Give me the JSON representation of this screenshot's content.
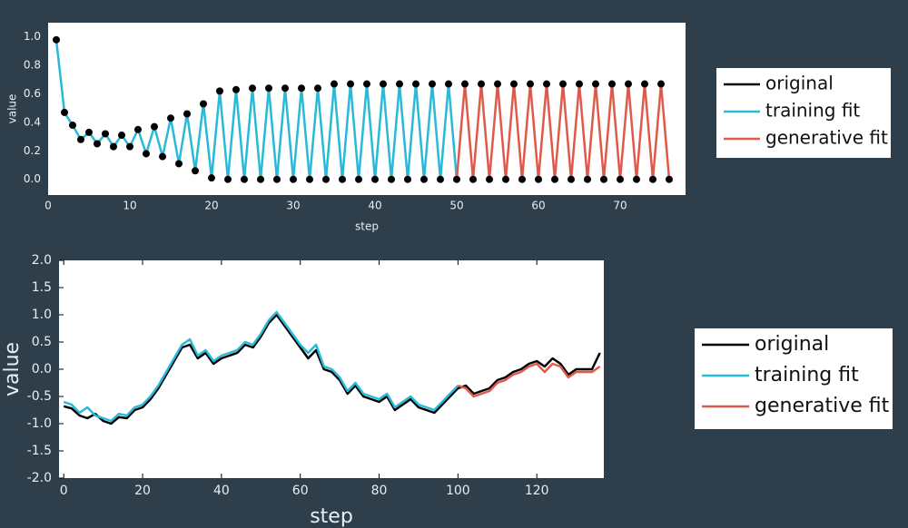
{
  "chart_data": [
    {
      "type": "line",
      "xlabel": "step",
      "ylabel": "value",
      "x": [
        1,
        2,
        3,
        4,
        5,
        6,
        7,
        8,
        9,
        10,
        11,
        12,
        13,
        14,
        15,
        16,
        17,
        18,
        19,
        20,
        21,
        22,
        23,
        24,
        25,
        26,
        27,
        28,
        29,
        30,
        31,
        32,
        33,
        34,
        35,
        36,
        37,
        38,
        39,
        40,
        41,
        42,
        43,
        44,
        45,
        46,
        47,
        48,
        49,
        50,
        51,
        52,
        53,
        54,
        55,
        56,
        57,
        58,
        59,
        60,
        61,
        62,
        63,
        64,
        65,
        66,
        67,
        68,
        69,
        70,
        71,
        72,
        73,
        74,
        75,
        76
      ],
      "series": [
        {
          "name": "original",
          "color": "#000000",
          "mode": "markers",
          "values": [
            0.98,
            0.47,
            0.38,
            0.28,
            0.33,
            0.25,
            0.32,
            0.23,
            0.31,
            0.23,
            0.35,
            0.18,
            0.37,
            0.16,
            0.43,
            0.11,
            0.46,
            0.06,
            0.53,
            0.01,
            0.62,
            0,
            0.63,
            0,
            0.64,
            0,
            0.64,
            0,
            0.64,
            0,
            0.64,
            0,
            0.64,
            0,
            0.67,
            0,
            0.67,
            0,
            0.67,
            0,
            0.67,
            0,
            0.67,
            0,
            0.67,
            0,
            0.67,
            0,
            0.67,
            0,
            0.67,
            0,
            0.67,
            0,
            0.67,
            0,
            0.67,
            0,
            0.67,
            0,
            0.67,
            0,
            0.67,
            0,
            0.67,
            0,
            0.67,
            0,
            0.67,
            0,
            0.67,
            0,
            0.67,
            0,
            0.67,
            0
          ]
        },
        {
          "name": "training fit",
          "color": "#29b9d9",
          "mode": "line",
          "values": [
            0.98,
            0.47,
            0.38,
            0.28,
            0.33,
            0.25,
            0.32,
            0.23,
            0.31,
            0.23,
            0.35,
            0.18,
            0.37,
            0.16,
            0.43,
            0.11,
            0.46,
            0.06,
            0.53,
            0.01,
            0.62,
            0,
            0.63,
            0,
            0.64,
            0,
            0.64,
            0,
            0.64,
            0,
            0.64,
            0,
            0.64,
            0,
            0.67,
            0,
            0.67,
            0,
            0.67,
            0,
            0.67,
            0,
            0.67,
            0,
            0.67,
            0,
            0.67,
            0,
            0.67,
            0,
            null,
            null,
            null,
            null,
            null,
            null,
            null,
            null,
            null,
            null,
            null,
            null,
            null,
            null,
            null,
            null,
            null,
            null,
            null,
            null,
            null,
            null,
            null,
            null,
            null,
            null
          ]
        },
        {
          "name": "generative fit",
          "color": "#e05a4b",
          "mode": "line",
          "values": [
            null,
            null,
            null,
            null,
            null,
            null,
            null,
            null,
            null,
            null,
            null,
            null,
            null,
            null,
            null,
            null,
            null,
            null,
            null,
            null,
            null,
            null,
            null,
            null,
            null,
            null,
            null,
            null,
            null,
            null,
            null,
            null,
            null,
            null,
            null,
            null,
            null,
            null,
            null,
            null,
            null,
            null,
            null,
            null,
            null,
            null,
            null,
            null,
            null,
            0,
            0.67,
            0,
            0.67,
            0,
            0.67,
            0,
            0.67,
            0,
            0.67,
            0,
            0.67,
            0,
            0.67,
            0,
            0.67,
            0,
            0.67,
            0,
            0.67,
            0,
            0.67,
            0,
            0.67,
            0,
            0.67,
            0
          ]
        }
      ],
      "xlim": [
        0,
        78
      ],
      "ylim": [
        -0.11,
        1.1
      ],
      "xticks": [
        0,
        10,
        20,
        30,
        40,
        50,
        60,
        70
      ],
      "yticks": [
        {
          "value": 0,
          "label": "0.0"
        },
        0.2,
        0.4,
        0.6,
        0.8,
        {
          "value": 1,
          "label": "1.0"
        }
      ]
    },
    {
      "type": "line",
      "xlabel": "step",
      "ylabel": "value",
      "x": [
        0,
        2,
        4,
        6,
        8,
        10,
        12,
        14,
        16,
        18,
        20,
        22,
        24,
        26,
        28,
        30,
        32,
        34,
        36,
        38,
        40,
        42,
        44,
        46,
        48,
        50,
        52,
        54,
        56,
        58,
        60,
        62,
        64,
        66,
        68,
        70,
        72,
        74,
        76,
        78,
        80,
        82,
        84,
        86,
        88,
        90,
        92,
        94,
        96,
        98,
        100,
        102,
        104,
        106,
        108,
        110,
        112,
        114,
        116,
        118,
        120,
        122,
        124,
        126,
        128,
        130,
        132,
        134,
        136
      ],
      "series": [
        {
          "name": "original",
          "color": "#000000",
          "mode": "line",
          "values": [
            -0.68,
            -0.72,
            -0.85,
            -0.9,
            -0.82,
            -0.95,
            -1.0,
            -0.88,
            -0.9,
            -0.75,
            -0.7,
            -0.55,
            -0.35,
            -0.1,
            0.15,
            0.4,
            0.45,
            0.2,
            0.3,
            0.1,
            0.2,
            0.25,
            0.3,
            0.45,
            0.4,
            0.6,
            0.85,
            1.0,
            0.8,
            0.6,
            0.4,
            0.2,
            0.35,
            0.0,
            -0.05,
            -0.2,
            -0.45,
            -0.3,
            -0.5,
            -0.55,
            -0.6,
            -0.5,
            -0.75,
            -0.65,
            -0.55,
            -0.7,
            -0.75,
            -0.8,
            -0.65,
            -0.5,
            -0.35,
            -0.3,
            -0.45,
            -0.4,
            -0.35,
            -0.2,
            -0.15,
            -0.05,
            0.0,
            0.1,
            0.15,
            0.05,
            0.2,
            0.1,
            -0.1,
            0.0,
            0.0,
            0.0,
            0.3
          ]
        },
        {
          "name": "training fit",
          "color": "#29b9d9",
          "mode": "line",
          "values": [
            -0.6,
            -0.65,
            -0.8,
            -0.7,
            -0.85,
            -0.9,
            -0.95,
            -0.82,
            -0.85,
            -0.7,
            -0.65,
            -0.5,
            -0.3,
            -0.05,
            0.2,
            0.45,
            0.55,
            0.25,
            0.35,
            0.15,
            0.25,
            0.3,
            0.35,
            0.5,
            0.45,
            0.65,
            0.9,
            1.05,
            0.85,
            0.65,
            0.45,
            0.3,
            0.45,
            0.05,
            0.0,
            -0.15,
            -0.4,
            -0.25,
            -0.45,
            -0.5,
            -0.55,
            -0.45,
            -0.7,
            -0.6,
            -0.5,
            -0.65,
            -0.7,
            -0.75,
            -0.6,
            -0.45,
            -0.3,
            null,
            null,
            null,
            null,
            null,
            null,
            null,
            null,
            null,
            null,
            null,
            null,
            null,
            null,
            null,
            null,
            null,
            null
          ]
        },
        {
          "name": "generative fit",
          "color": "#e05a4b",
          "mode": "line",
          "values": [
            null,
            null,
            null,
            null,
            null,
            null,
            null,
            null,
            null,
            null,
            null,
            null,
            null,
            null,
            null,
            null,
            null,
            null,
            null,
            null,
            null,
            null,
            null,
            null,
            null,
            null,
            null,
            null,
            null,
            null,
            null,
            null,
            null,
            null,
            null,
            null,
            null,
            null,
            null,
            null,
            null,
            null,
            null,
            null,
            null,
            null,
            null,
            null,
            null,
            null,
            -0.3,
            -0.35,
            -0.5,
            -0.45,
            -0.4,
            -0.25,
            -0.2,
            -0.1,
            -0.05,
            0.05,
            0.1,
            -0.05,
            0.1,
            0.05,
            -0.15,
            -0.05,
            -0.05,
            -0.05,
            0.05
          ]
        }
      ],
      "xlim": [
        -1.2,
        137
      ],
      "ylim": [
        -2,
        2
      ],
      "xticks": [
        0,
        20,
        40,
        60,
        80,
        100,
        120
      ],
      "yticks": [
        {
          "value": -2,
          "label": "-2.0"
        },
        -1.5,
        {
          "value": -1,
          "label": "-1.0"
        },
        -0.5,
        {
          "value": 0,
          "label": "0.0"
        },
        0.5,
        {
          "value": 1,
          "label": "1.0"
        },
        1.5,
        {
          "value": 2,
          "label": "2.0"
        }
      ]
    }
  ]
}
